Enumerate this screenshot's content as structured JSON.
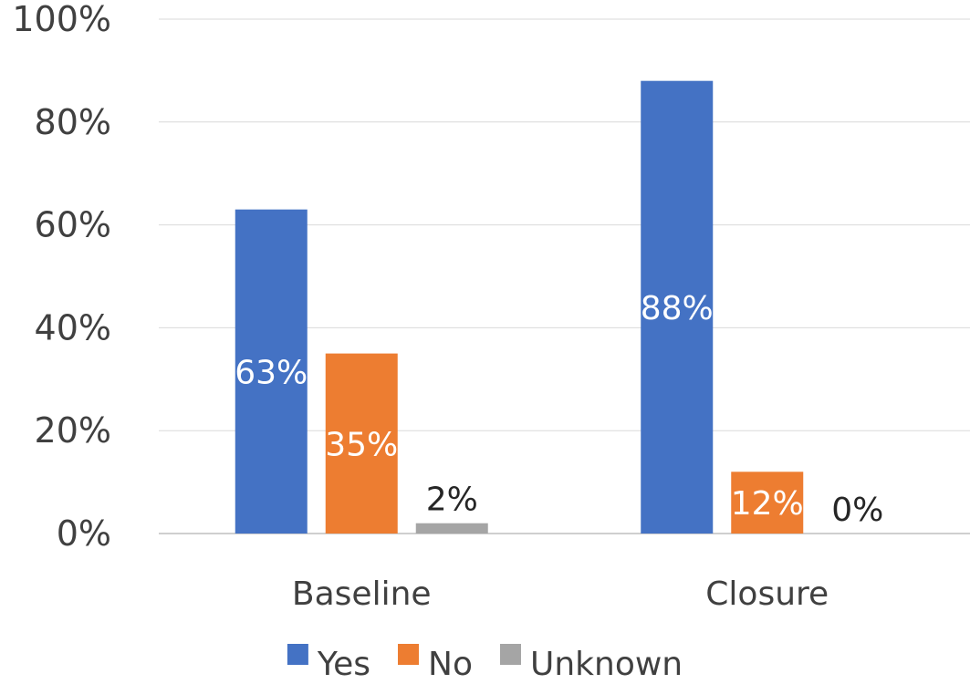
{
  "chart_data": {
    "type": "bar",
    "title": "",
    "xlabel": "",
    "ylabel": "",
    "ylim": [
      0,
      100
    ],
    "y_tick_format": "percent",
    "y_ticks": [
      "0%",
      "20%",
      "40%",
      "60%",
      "80%",
      "100%"
    ],
    "grid": true,
    "categories": [
      "Baseline",
      "Closure"
    ],
    "series": [
      {
        "name": "Yes",
        "color": "#4472C4",
        "values": [
          63,
          88
        ],
        "labels": [
          "63%",
          "88%"
        ],
        "label_color": "#ffffff"
      },
      {
        "name": "No",
        "color": "#ED7D31",
        "values": [
          35,
          12
        ],
        "labels": [
          "35%",
          "12%"
        ],
        "label_color": "#ffffff"
      },
      {
        "name": "Unknown",
        "color": "#A5A5A5",
        "values": [
          2,
          0
        ],
        "labels": [
          "2%",
          "0%"
        ],
        "label_color": "#262626"
      }
    ],
    "legend": {
      "position": "bottom",
      "entries": [
        "Yes",
        "No",
        "Unknown"
      ]
    }
  }
}
